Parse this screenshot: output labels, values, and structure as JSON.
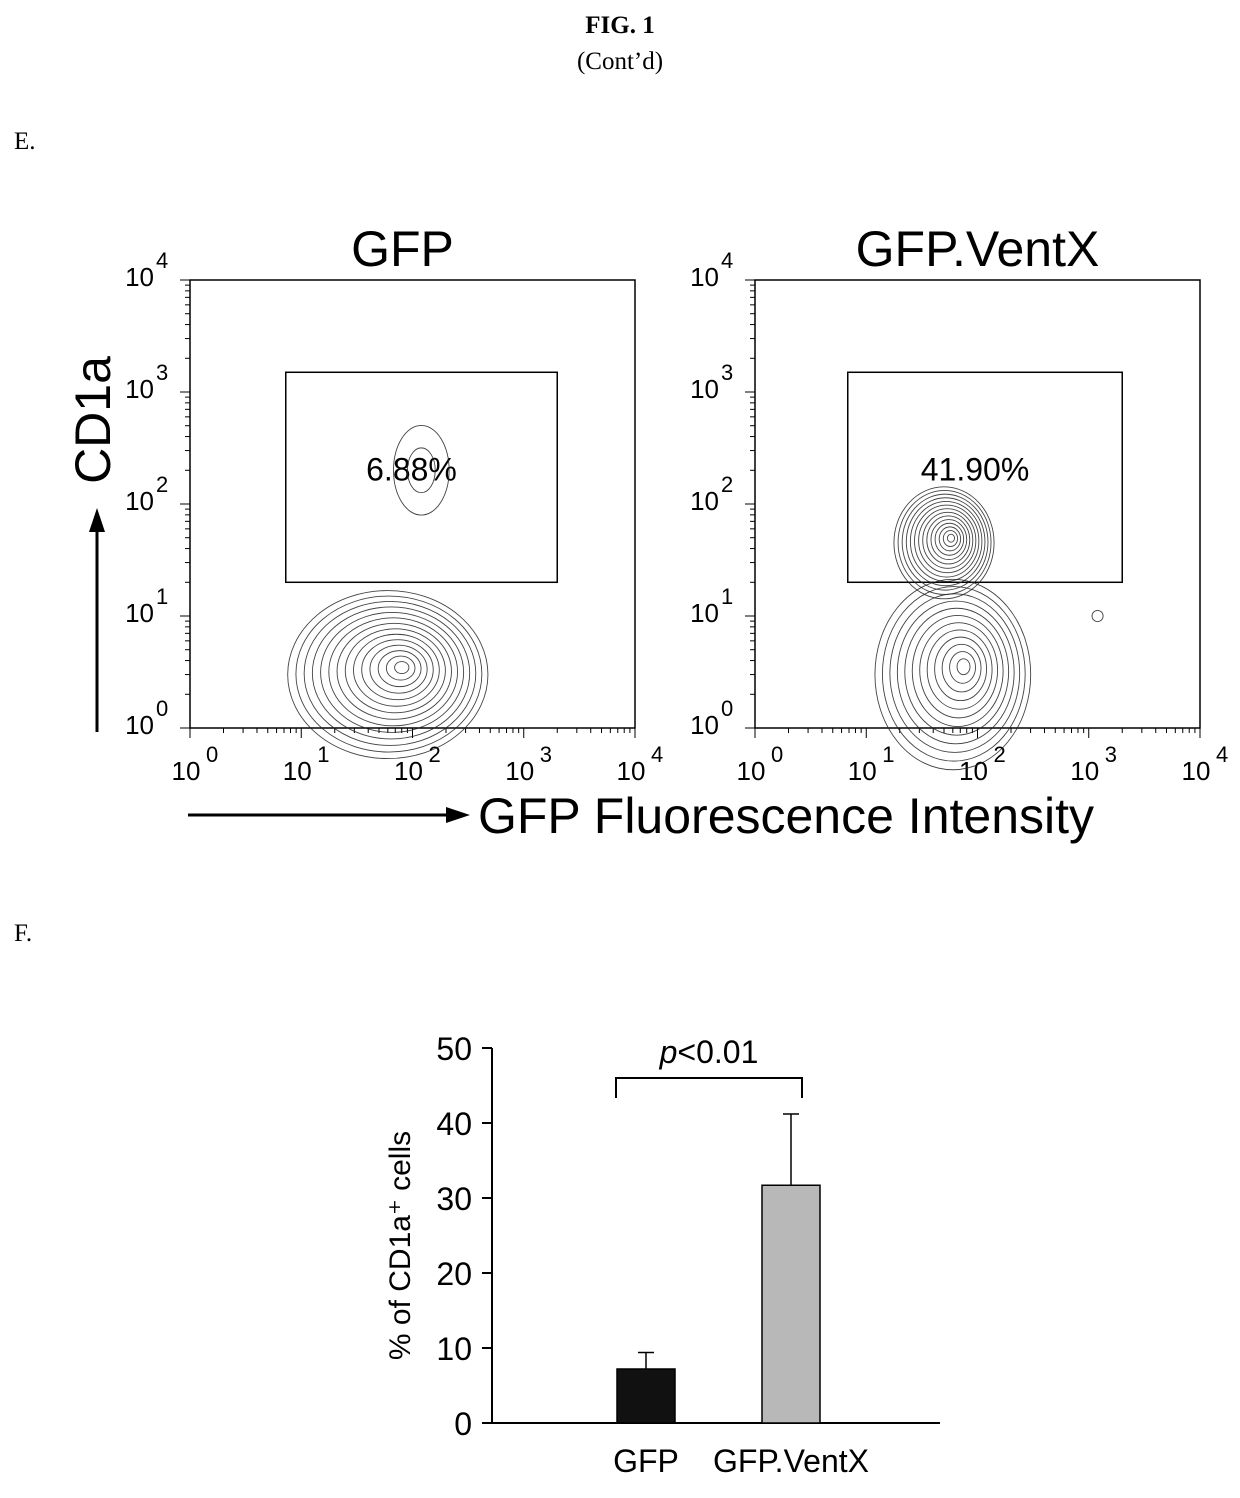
{
  "figure": {
    "title": "FIG. 1",
    "subtitle": "(Cont’d)",
    "panel_e_label": "E.",
    "panel_f_label": "F."
  },
  "chart_data": [
    {
      "type": "contour",
      "panel": "E",
      "shared_xlabel": "GFP Fluorescence Intensity",
      "shared_ylabel": "CD1a",
      "log_scale": true,
      "xlim": [
        1,
        10000
      ],
      "ylim": [
        1,
        10000
      ],
      "x_ticks": [
        "10",
        "10",
        "10",
        "10",
        "10"
      ],
      "x_tick_exponents": [
        "0",
        "1",
        "2",
        "3",
        "4"
      ],
      "y_ticks": [
        "10",
        "10",
        "10",
        "10",
        "10"
      ],
      "y_tick_exponents": [
        "0",
        "1",
        "2",
        "3",
        "4"
      ],
      "plots": [
        {
          "title": "GFP",
          "gate_percent": "6.88%",
          "gate": {
            "x_range": [
              5,
              2000
            ],
            "y_range": [
              20,
              1500
            ]
          },
          "populations": [
            {
              "center": [
                60,
                3
              ],
              "spread": [
                0.9,
                0.75
              ],
              "levels": 14
            },
            {
              "center": [
                120,
                200
              ],
              "spread": [
                0.25,
                0.4
              ],
              "levels": 2
            }
          ]
        },
        {
          "title": "GFP.VentX",
          "gate_percent": "41.90%",
          "gate": {
            "x_range": [
              5,
              2000
            ],
            "y_range": [
              20,
              1500
            ]
          },
          "populations": [
            {
              "center": [
                50,
                45
              ],
              "spread": [
                0.45,
                0.5
              ],
              "levels": 14
            },
            {
              "center": [
                60,
                3
              ],
              "spread": [
                0.7,
                0.85
              ],
              "levels": 12
            },
            {
              "center": [
                1200,
                10
              ],
              "spread": [
                0.05,
                0.05
              ],
              "levels": 1
            }
          ]
        }
      ]
    },
    {
      "type": "bar",
      "panel": "F",
      "categories": [
        "GFP",
        "GFP.VentX"
      ],
      "values": [
        7.2,
        31.7
      ],
      "errors": [
        2.2,
        9.5
      ],
      "colors": [
        "#111111",
        "#b8b8b8"
      ],
      "ylabel": "% of CD1a⁺ cells",
      "ylim": [
        0,
        50
      ],
      "yticks": [
        "0",
        "10",
        "20",
        "30",
        "40",
        "50"
      ],
      "significance": {
        "label": "p<0.01",
        "p_italic": "p",
        "rest": "<0.01"
      }
    }
  ]
}
